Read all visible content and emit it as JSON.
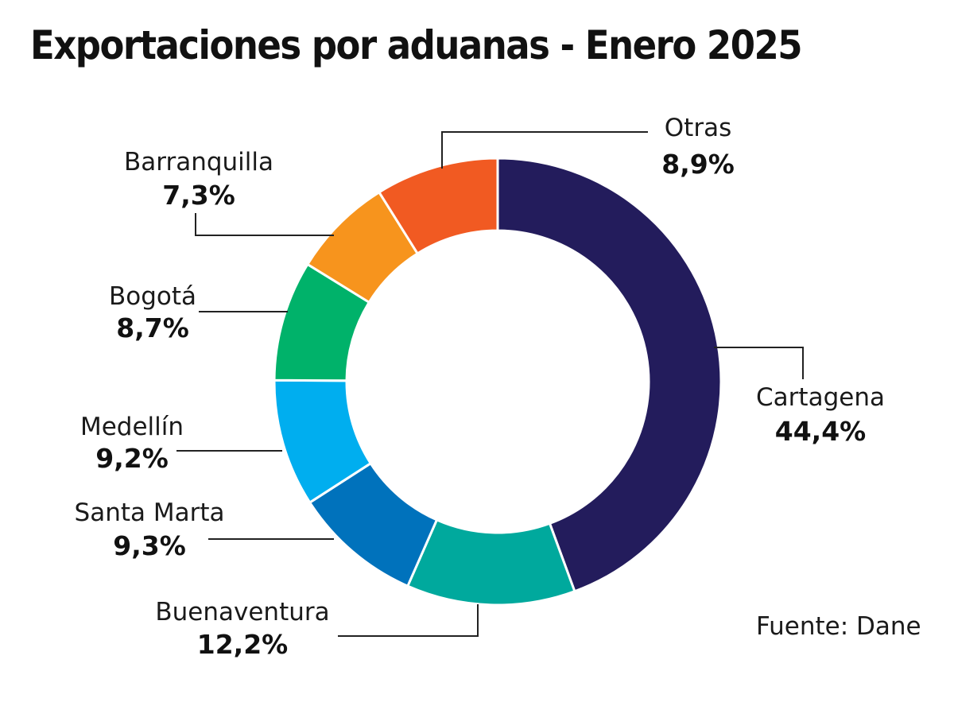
{
  "title": "Exportaciones por aduanas - Enero 2025",
  "source": "Fuente: Dane",
  "chart_data": {
    "type": "pie",
    "donut": true,
    "legend": "none",
    "slices": [
      {
        "label": "Cartagena",
        "value": 44.4,
        "value_label": "44,4%",
        "color": "#231C5C"
      },
      {
        "label": "Buenaventura",
        "value": 12.2,
        "value_label": "12,2%",
        "color": "#00A99D"
      },
      {
        "label": "Santa Marta",
        "value": 9.3,
        "value_label": "9,3%",
        "color": "#0072BC"
      },
      {
        "label": "Medellín",
        "value": 9.2,
        "value_label": "9,2%",
        "color": "#00AEEF"
      },
      {
        "label": "Bogotá",
        "value": 8.7,
        "value_label": "8,7%",
        "color": "#00B26A"
      },
      {
        "label": "Barranquilla",
        "value": 7.3,
        "value_label": "7,3%",
        "color": "#F7941D"
      },
      {
        "label": "Otras",
        "value": 8.9,
        "value_label": "8,9%",
        "color": "#F15A22"
      }
    ]
  }
}
